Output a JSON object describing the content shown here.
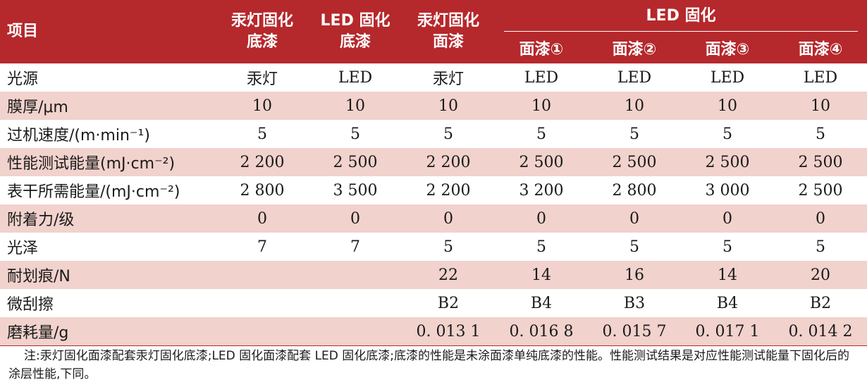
{
  "table": {
    "header": {
      "item": "项目",
      "mercury_primer": [
        "汞灯固化",
        "底漆"
      ],
      "led_primer": [
        "LED 固化",
        "底漆"
      ],
      "mercury_topcoat": [
        "汞灯固化",
        "面漆"
      ],
      "led_group": "LED 固化",
      "led_topcoats": [
        "面漆①",
        "面漆②",
        "面漆③",
        "面漆④"
      ]
    },
    "rows": [
      {
        "label": "光源",
        "cells": [
          "汞灯",
          "LED",
          "汞灯",
          "LED",
          "LED",
          "LED",
          "LED"
        ]
      },
      {
        "label": "膜厚/μm",
        "cells": [
          "10",
          "10",
          "10",
          "10",
          "10",
          "10",
          "10"
        ]
      },
      {
        "label": "过机速度/(m·min⁻¹)",
        "cells": [
          "5",
          "5",
          "5",
          "5",
          "5",
          "5",
          "5"
        ]
      },
      {
        "label": "性能测试能量(mJ·cm⁻²)",
        "cells": [
          "2 200",
          "2 500",
          "2 200",
          "2 500",
          "2 500",
          "2 500",
          "2 500"
        ]
      },
      {
        "label": "表干所需能量/(mJ·cm⁻²)",
        "cells": [
          "2 800",
          "3 500",
          "2 200",
          "3 200",
          "2 800",
          "3 000",
          "2 500"
        ]
      },
      {
        "label": "附着力/级",
        "cells": [
          "0",
          "0",
          "0",
          "0",
          "0",
          "0",
          "0"
        ]
      },
      {
        "label": "光泽",
        "cells": [
          "7",
          "7",
          "5",
          "5",
          "5",
          "5",
          "5"
        ]
      },
      {
        "label": "耐划痕/N",
        "cells": [
          "",
          "",
          "22",
          "14",
          "16",
          "14",
          "20"
        ]
      },
      {
        "label": "微刮擦",
        "cells": [
          "",
          "",
          "B2",
          "B4",
          "B3",
          "B4",
          "B2"
        ]
      },
      {
        "label": "磨耗量/g",
        "cells": [
          "",
          "",
          "0. 013 1",
          "0. 016 8",
          "0. 015 7",
          "0. 017 1",
          "0. 014 2"
        ]
      }
    ]
  },
  "note": "注:汞灯固化面漆配套汞灯固化底漆;LED 固化面漆配套 LED 固化底漆;底漆的性能是未涂面漆单纯底漆的性能。性能测试结果是对应性能测试能量下固化后的涂层性能,下同。",
  "colors": {
    "header_bg": "#b5282c",
    "shade_bg": "#f1d2cc"
  }
}
